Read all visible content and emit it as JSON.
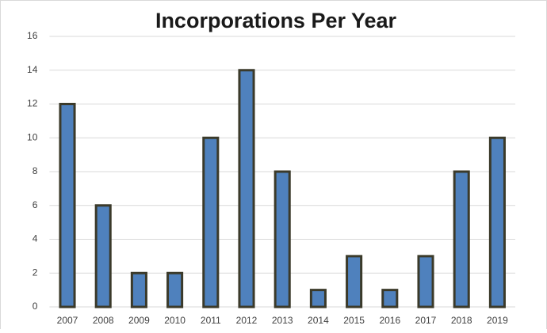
{
  "chart_data": {
    "type": "bar",
    "title": "Incorporations Per Year",
    "categories": [
      "2007",
      "2008",
      "2009",
      "2010",
      "2011",
      "2012",
      "2013",
      "2014",
      "2015",
      "2016",
      "2017",
      "2018",
      "2019"
    ],
    "values": [
      12,
      6,
      2,
      2,
      10,
      14,
      8,
      1,
      3,
      1,
      3,
      8,
      10
    ],
    "color": "#4f81bd",
    "edge_color": "#3b3a2a",
    "ylim": [
      0,
      16
    ],
    "yticks": [
      0,
      2,
      4,
      6,
      8,
      10,
      12,
      14,
      16
    ],
    "grid": true
  }
}
